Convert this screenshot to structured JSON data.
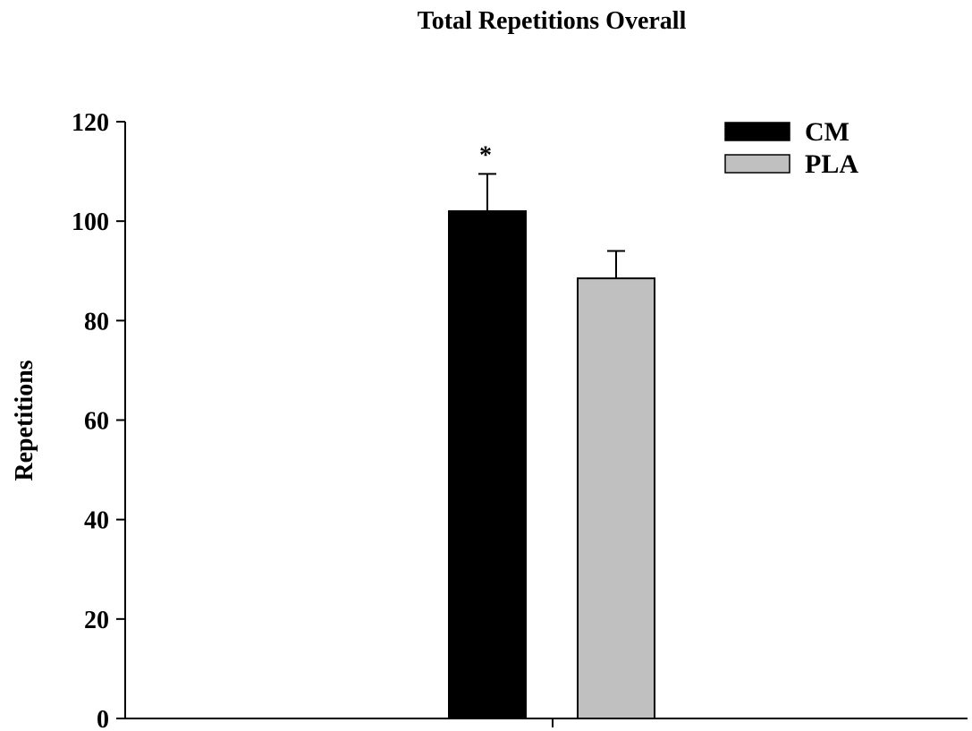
{
  "chart_data": {
    "type": "bar",
    "title": "Total Repetitions Overall",
    "xlabel": "",
    "ylabel": "Repetitions",
    "ylim": [
      0,
      120
    ],
    "yticks": [
      0,
      20,
      40,
      60,
      80,
      100,
      120
    ],
    "ytick_labels": [
      "0",
      "20",
      "40",
      "60",
      "80",
      "100",
      "120"
    ],
    "categories": [
      ""
    ],
    "series": [
      {
        "name": "CM",
        "values": [
          102
        ],
        "error": [
          7.5
        ],
        "color": "#000000",
        "annotation": "*"
      },
      {
        "name": "PLA",
        "values": [
          88.5
        ],
        "error": [
          5.5
        ],
        "color": "#c0c0c0",
        "annotation": ""
      }
    ],
    "legend_position": "top-right",
    "grid": false
  }
}
